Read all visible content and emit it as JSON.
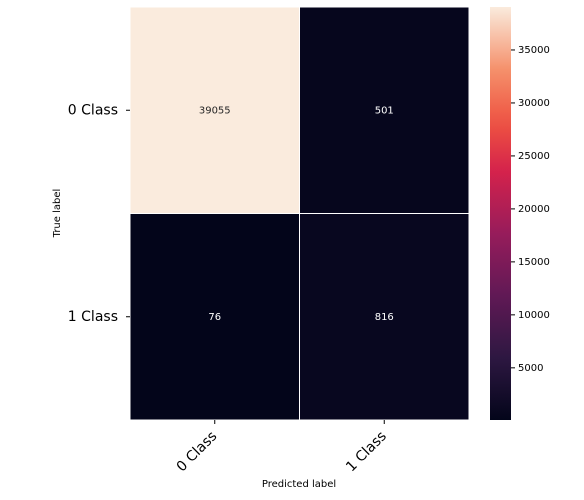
{
  "chart_data": {
    "type": "heatmap",
    "x_categories": [
      "0 Class",
      "1 Class"
    ],
    "y_categories": [
      "0 Class",
      "1 Class"
    ],
    "values": [
      [
        39055,
        501
      ],
      [
        76,
        816
      ]
    ],
    "xlabel": "Predicted label",
    "ylabel": "True label",
    "colormap": "rocket",
    "clim": [
      76,
      39055
    ],
    "cticks": [
      5000,
      10000,
      15000,
      20000,
      25000,
      30000,
      35000
    ]
  }
}
